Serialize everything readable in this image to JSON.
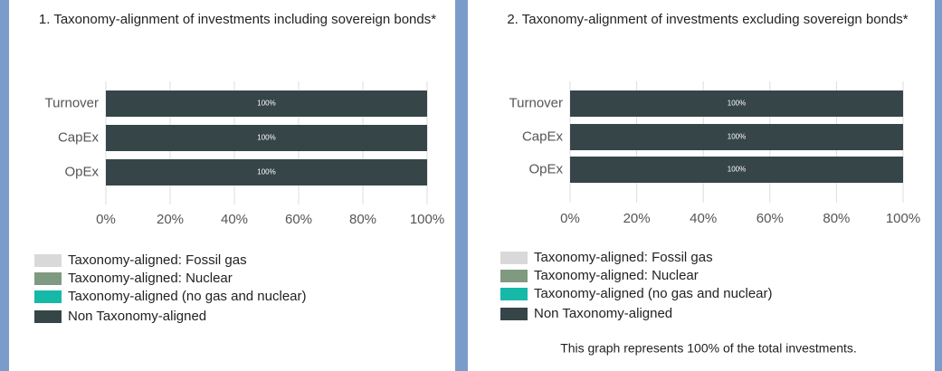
{
  "chart_data": [
    {
      "type": "bar",
      "orientation": "horizontal",
      "stacked": true,
      "title": "1. Taxonomy-alignment of investments including sovereign bonds*",
      "categories": [
        "Turnover",
        "CapEx",
        "OpEx"
      ],
      "series": [
        {
          "name": "Taxonomy-aligned: Fossil gas",
          "color": "#d9d9d9",
          "values": [
            0,
            0,
            0
          ]
        },
        {
          "name": "Taxonomy-aligned: Nuclear",
          "color": "#7f9a80",
          "values": [
            0,
            0,
            0
          ]
        },
        {
          "name": "Taxonomy-aligned (no gas and nuclear)",
          "color": "#16b8a8",
          "values": [
            0,
            0,
            0
          ]
        },
        {
          "name": "Non Taxonomy-aligned",
          "color": "#364548",
          "values": [
            100,
            100,
            100
          ],
          "value_labels": [
            "100%",
            "100%",
            "100%"
          ]
        }
      ],
      "xlim": [
        0,
        100
      ],
      "xticks": [
        {
          "value": 0,
          "label": "0%"
        },
        {
          "value": 20,
          "label": "20%"
        },
        {
          "value": 40,
          "label": "40%"
        },
        {
          "value": 60,
          "label": "60%"
        },
        {
          "value": 80,
          "label": "80%"
        },
        {
          "value": 100,
          "label": "100%"
        }
      ],
      "grid": true,
      "legend": "bottom-left"
    },
    {
      "type": "bar",
      "orientation": "horizontal",
      "stacked": true,
      "title": "2. Taxonomy-alignment of investments excluding sovereign bonds*",
      "categories": [
        "Turnover",
        "CapEx",
        "OpEx"
      ],
      "series": [
        {
          "name": "Taxonomy-aligned: Fossil gas",
          "color": "#d9d9d9",
          "values": [
            0,
            0,
            0
          ]
        },
        {
          "name": "Taxonomy-aligned: Nuclear",
          "color": "#7f9a80",
          "values": [
            0,
            0,
            0
          ]
        },
        {
          "name": "Taxonomy-aligned (no gas and nuclear)",
          "color": "#16b8a8",
          "values": [
            0,
            0,
            0
          ]
        },
        {
          "name": "Non Taxonomy-aligned",
          "color": "#364548",
          "values": [
            100,
            100,
            100
          ],
          "value_labels": [
            "100%",
            "100%",
            "100%"
          ]
        }
      ],
      "xlim": [
        0,
        100
      ],
      "xticks": [
        {
          "value": 0,
          "label": "0%"
        },
        {
          "value": 20,
          "label": "20%"
        },
        {
          "value": 40,
          "label": "40%"
        },
        {
          "value": 60,
          "label": "60%"
        },
        {
          "value": 80,
          "label": "80%"
        },
        {
          "value": 100,
          "label": "100%"
        }
      ],
      "grid": true,
      "legend": "bottom-left",
      "annotation": "This graph represents 100% of the total investments."
    }
  ]
}
